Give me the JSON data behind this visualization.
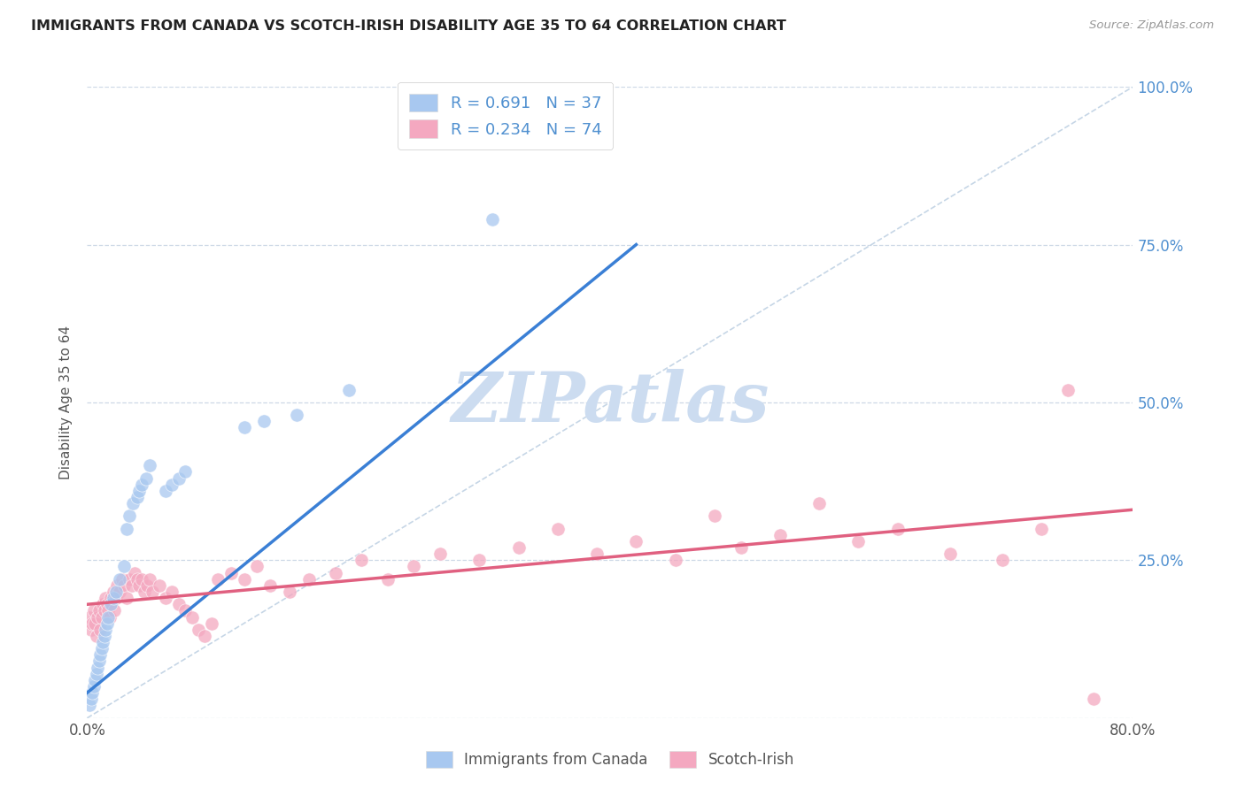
{
  "title": "IMMIGRANTS FROM CANADA VS SCOTCH-IRISH DISABILITY AGE 35 TO 64 CORRELATION CHART",
  "source": "Source: ZipAtlas.com",
  "ylabel": "Disability Age 35 to 64",
  "xlim": [
    0.0,
    0.8
  ],
  "ylim": [
    0.0,
    1.0
  ],
  "ytick_positions": [
    0.0,
    0.25,
    0.5,
    0.75,
    1.0
  ],
  "ytick_labels_right": [
    "",
    "25.0%",
    "50.0%",
    "75.0%",
    "100.0%"
  ],
  "blue_color": "#a8c8f0",
  "pink_color": "#f4a8c0",
  "blue_line_color": "#3a7fd5",
  "pink_line_color": "#e06080",
  "diag_line_color": "#b8cce0",
  "watermark_color": "#ccdcf0",
  "r_blue": 0.691,
  "n_blue": 37,
  "r_pink": 0.234,
  "n_pink": 74,
  "legend_label_blue": "Immigrants from Canada",
  "legend_label_pink": "Scotch-Irish",
  "blue_scatter_x": [
    0.002,
    0.003,
    0.004,
    0.005,
    0.006,
    0.007,
    0.008,
    0.009,
    0.01,
    0.011,
    0.012,
    0.013,
    0.014,
    0.015,
    0.016,
    0.018,
    0.02,
    0.022,
    0.025,
    0.028,
    0.03,
    0.032,
    0.035,
    0.038,
    0.04,
    0.042,
    0.045,
    0.048,
    0.06,
    0.065,
    0.07,
    0.075,
    0.12,
    0.135,
    0.16,
    0.2,
    0.31
  ],
  "blue_scatter_y": [
    0.02,
    0.03,
    0.04,
    0.05,
    0.06,
    0.07,
    0.08,
    0.09,
    0.1,
    0.11,
    0.12,
    0.13,
    0.14,
    0.15,
    0.16,
    0.18,
    0.19,
    0.2,
    0.22,
    0.24,
    0.3,
    0.32,
    0.34,
    0.35,
    0.36,
    0.37,
    0.38,
    0.4,
    0.36,
    0.37,
    0.38,
    0.39,
    0.46,
    0.47,
    0.48,
    0.52,
    0.79
  ],
  "pink_scatter_x": [
    0.002,
    0.003,
    0.004,
    0.005,
    0.006,
    0.007,
    0.008,
    0.009,
    0.01,
    0.011,
    0.012,
    0.013,
    0.014,
    0.015,
    0.016,
    0.017,
    0.018,
    0.019,
    0.02,
    0.021,
    0.022,
    0.023,
    0.025,
    0.027,
    0.028,
    0.03,
    0.032,
    0.034,
    0.036,
    0.038,
    0.04,
    0.042,
    0.044,
    0.046,
    0.048,
    0.05,
    0.055,
    0.06,
    0.065,
    0.07,
    0.075,
    0.08,
    0.085,
    0.09,
    0.095,
    0.1,
    0.11,
    0.12,
    0.13,
    0.14,
    0.155,
    0.17,
    0.19,
    0.21,
    0.23,
    0.25,
    0.27,
    0.3,
    0.33,
    0.36,
    0.39,
    0.42,
    0.45,
    0.48,
    0.5,
    0.53,
    0.56,
    0.59,
    0.62,
    0.66,
    0.7,
    0.73,
    0.75,
    0.77
  ],
  "pink_scatter_y": [
    0.16,
    0.14,
    0.15,
    0.17,
    0.15,
    0.13,
    0.16,
    0.17,
    0.14,
    0.16,
    0.18,
    0.17,
    0.19,
    0.18,
    0.17,
    0.16,
    0.19,
    0.18,
    0.2,
    0.17,
    0.19,
    0.21,
    0.2,
    0.22,
    0.21,
    0.19,
    0.22,
    0.21,
    0.23,
    0.22,
    0.21,
    0.22,
    0.2,
    0.21,
    0.22,
    0.2,
    0.21,
    0.19,
    0.2,
    0.18,
    0.17,
    0.16,
    0.14,
    0.13,
    0.15,
    0.22,
    0.23,
    0.22,
    0.24,
    0.21,
    0.2,
    0.22,
    0.23,
    0.25,
    0.22,
    0.24,
    0.26,
    0.25,
    0.27,
    0.3,
    0.26,
    0.28,
    0.25,
    0.32,
    0.27,
    0.29,
    0.34,
    0.28,
    0.3,
    0.26,
    0.25,
    0.3,
    0.52,
    0.03
  ],
  "blue_line_x": [
    0.0,
    0.42
  ],
  "blue_line_y": [
    0.04,
    0.75
  ],
  "pink_line_x": [
    0.0,
    0.8
  ],
  "pink_line_y": [
    0.18,
    0.33
  ],
  "background_color": "#ffffff",
  "grid_color": "#c8d4e4",
  "title_color": "#222222",
  "axis_label_color": "#555555",
  "right_tick_color": "#5090d0"
}
